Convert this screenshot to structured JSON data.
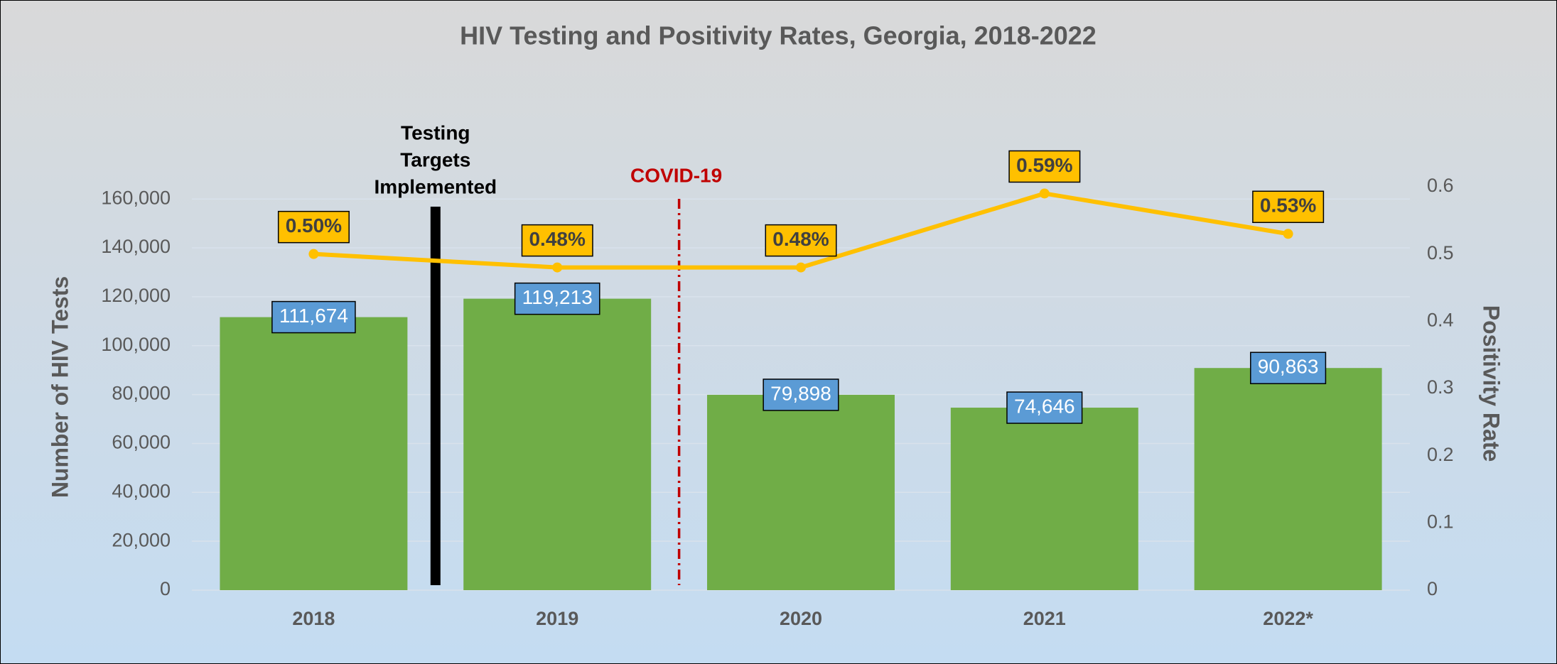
{
  "chart_data": {
    "type": "bar",
    "title": "HIV Testing and Positivity Rates, Georgia, 2018-2022",
    "categories": [
      "2018",
      "2019",
      "2020",
      "2021",
      "2022*"
    ],
    "series": [
      {
        "name": "Number of HIV Tests",
        "type": "bar",
        "color": "#70ad47",
        "values": [
          111674,
          119213,
          79898,
          74646,
          90863
        ],
        "value_labels": [
          "111,674",
          "119,213",
          "79,898",
          "74,646",
          "90,863"
        ]
      },
      {
        "name": "Positivity Rate",
        "type": "line",
        "axis": "y2",
        "color": "#ffc000",
        "values": [
          0.5,
          0.48,
          0.48,
          0.59,
          0.53
        ],
        "value_labels": [
          "0.50%",
          "0.48%",
          "0.48%",
          "0.59%",
          "0.53%"
        ]
      }
    ],
    "ylabel": "Number of HIV Tests",
    "y2label": "Positivity Rate",
    "ylim": [
      0,
      165000
    ],
    "yticks": [
      0,
      {
        "value": 20000,
        "label": "20,000"
      },
      {
        "value": 40000,
        "label": "40,000"
      },
      {
        "value": 60000,
        "label": "60,000"
      },
      {
        "value": 80000,
        "label": "80,000"
      },
      {
        "value": 100000,
        "label": "100,000"
      },
      {
        "value": 120000,
        "label": "120,000"
      },
      {
        "value": 140000,
        "label": "140,000"
      },
      {
        "value": 160000,
        "label": "160,000"
      }
    ],
    "y2lim": [
      0,
      0.6
    ],
    "y2ticks": [
      0,
      0.1,
      0.2,
      0.3,
      0.4,
      0.5,
      0.6
    ],
    "grid": true,
    "annotations": [
      {
        "lines": [
          "Testing",
          "Targets",
          "Implemented"
        ],
        "color": "#000000"
      },
      {
        "lines": [
          "COVID-19"
        ],
        "color": "#c00000"
      }
    ]
  }
}
